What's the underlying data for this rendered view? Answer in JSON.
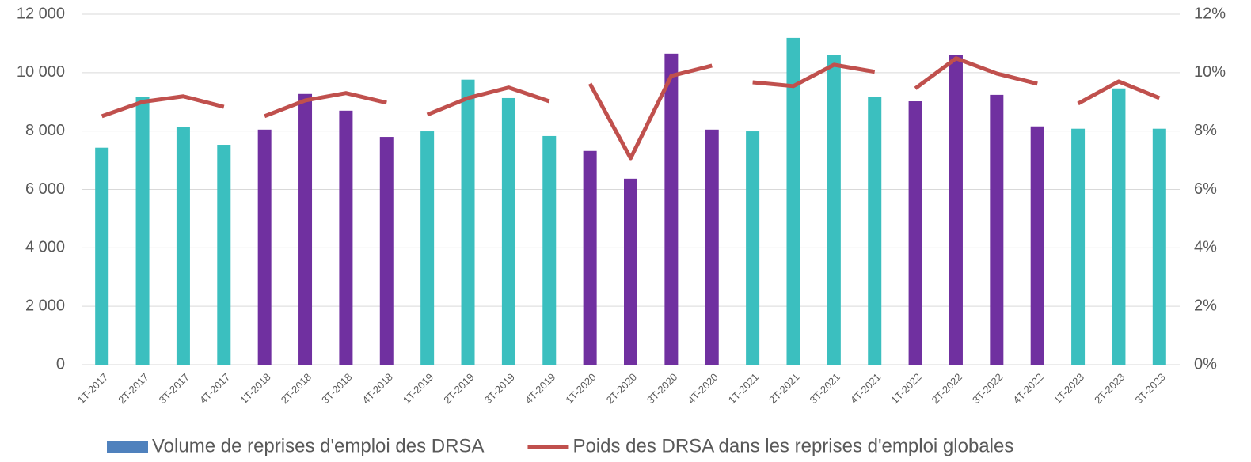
{
  "chart_data": {
    "type": "bar",
    "categories": [
      "1T-2017",
      "2T-2017",
      "3T-2017",
      "4T-2017",
      "1T-2018",
      "2T-2018",
      "3T-2018",
      "4T-2018",
      "1T-2019",
      "2T-2019",
      "3T-2019",
      "4T-2019",
      "1T-2020",
      "2T-2020",
      "3T-2020",
      "4T-2020",
      "1T-2021",
      "2T-2021",
      "3T-2021",
      "4T-2021",
      "1T-2022",
      "2T-2022",
      "3T-2022",
      "4T-2022",
      "1T-2023",
      "2T-2023",
      "3T-2023"
    ],
    "series": [
      {
        "name": "Volume de reprises d'emploi des DRSA",
        "type": "bar",
        "color": "#4f81bd",
        "colors": [
          "#3bbfbf",
          "#3bbfbf",
          "#3bbfbf",
          "#3bbfbf",
          "#7030a0",
          "#7030a0",
          "#7030a0",
          "#7030a0",
          "#3bbfbf",
          "#3bbfbf",
          "#3bbfbf",
          "#3bbfbf",
          "#7030a0",
          "#7030a0",
          "#7030a0",
          "#7030a0",
          "#3bbfbf",
          "#3bbfbf",
          "#3bbfbf",
          "#3bbfbf",
          "#7030a0",
          "#7030a0",
          "#7030a0",
          "#7030a0",
          "#3bbfbf",
          "#3bbfbf",
          "#3bbfbf"
        ],
        "values": [
          7430,
          9160,
          8130,
          7530,
          8050,
          9270,
          8700,
          7800,
          7990,
          9760,
          9130,
          7830,
          7320,
          6370,
          10650,
          8050,
          7990,
          11190,
          10600,
          9160,
          9020,
          10600,
          9240,
          8160,
          8080,
          9460,
          8080
        ]
      },
      {
        "name": "Poids des DRSA dans les reprises d'emploi globales",
        "type": "line",
        "color": "#c0504d",
        "axis": "y2",
        "values": [
          8.51,
          9.0,
          9.19,
          8.83,
          8.51,
          9.05,
          9.3,
          8.97,
          8.56,
          9.13,
          9.49,
          9.02,
          9.62,
          7.07,
          9.89,
          10.24,
          9.67,
          9.54,
          10.27,
          10.03,
          9.46,
          10.49,
          9.97,
          9.62,
          8.94,
          9.7,
          9.13
        ]
      }
    ],
    "ylim": [
      0,
      12000
    ],
    "yticks": [
      {
        "value": 0,
        "label": "0"
      },
      {
        "value": 2000,
        "label": "2 000"
      },
      {
        "value": 4000,
        "label": "4 000"
      },
      {
        "value": 6000,
        "label": "6 000"
      },
      {
        "value": 8000,
        "label": "8 000"
      },
      {
        "value": 10000,
        "label": "10 000"
      },
      {
        "value": 12000,
        "label": "12 000"
      }
    ],
    "y2lim": [
      0,
      12
    ],
    "y2ticks": [
      {
        "value": 0,
        "label": "0%"
      },
      {
        "value": 2,
        "label": "2%"
      },
      {
        "value": 4,
        "label": "4%"
      },
      {
        "value": 6,
        "label": "6%"
      },
      {
        "value": 8,
        "label": "8%"
      },
      {
        "value": 10,
        "label": "10%"
      },
      {
        "value": 12,
        "label": "12%"
      }
    ],
    "grid": true,
    "legend": "bottom"
  }
}
